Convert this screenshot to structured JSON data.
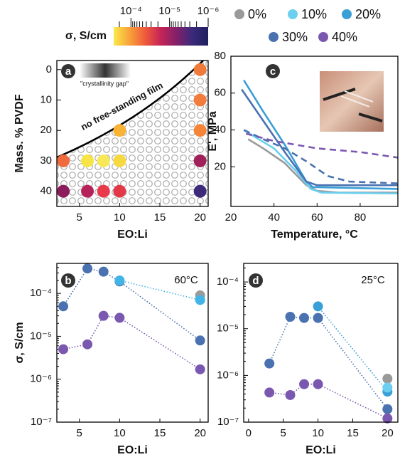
{
  "chart_data": [
    {
      "type": "scatter",
      "panel_label": "a",
      "xlabel": "EO:Li",
      "ylabel": "Mass. % PVDF",
      "xlim": [
        2.2,
        21
      ],
      "xticks": [
        5,
        10,
        15,
        20
      ],
      "ylim": [
        45,
        -3
      ],
      "yticks": [
        0,
        10,
        20,
        30,
        40
      ],
      "annotations": [
        "no free-standing film",
        "\"crystallinity gap\""
      ],
      "colorbar": {
        "label": "σ, S/cm",
        "log": true,
        "lim": [
          0.00028,
          1e-06
        ],
        "ticks": [
          {
            "value": 0.0001,
            "label": "10⁻⁴"
          },
          {
            "value": 1e-05,
            "label": "10⁻⁵"
          },
          {
            "value": 1e-06,
            "label": "10⁻⁶"
          }
        ],
        "colors": [
          "#fbe94a",
          "#f8a23a",
          "#ef5a3c",
          "#c42456",
          "#82206a",
          "#3a2a7a",
          "#1f1f5e"
        ]
      },
      "series": [
        {
          "x": [
            20,
            20,
            20,
            20,
            20,
            10,
            10,
            8,
            6,
            3,
            3,
            6,
            8,
            10
          ],
          "values": [
            0,
            10,
            20,
            30,
            40,
            20,
            30,
            30,
            30,
            30,
            40,
            40,
            40,
            40
          ],
          "colors": [
            "#f07a3a",
            "#f37b3b",
            "#f58438",
            "#a0205a",
            "#3d2a7a",
            "#f9b233",
            "#f6d840",
            "#f8e858",
            "#f7e446",
            "#ef6a3c",
            "#8c1c5c",
            "#b7215a",
            "#e83a4a",
            "#e23848"
          ]
        }
      ]
    },
    {
      "type": "line",
      "markers": true,
      "ylog": true,
      "panel_label": "b",
      "xlabel": "EO:Li",
      "ylabel": "σ, S/cm",
      "annotations": [
        "60°C"
      ],
      "xlim": [
        2.2,
        21
      ],
      "xticks": [
        5,
        10,
        15,
        20
      ],
      "ylim": [
        1e-07,
        0.0005
      ],
      "yticks": [
        {
          "value": 1e-07,
          "label": "10⁻⁷"
        },
        {
          "value": 1e-06,
          "label": "10⁻⁶"
        },
        {
          "value": 1e-05,
          "label": "10⁻⁵"
        },
        {
          "value": 0.0001,
          "label": "10⁻⁴"
        }
      ],
      "series": [
        {
          "color": "#9a9a9a",
          "x": [
            20
          ],
          "values": [
            9e-05
          ]
        },
        {
          "color": "#4a72b0",
          "x": [
            3,
            6,
            8,
            10,
            20
          ],
          "values": [
            5e-05,
            0.00038,
            0.00032,
            0.00019,
            8e-06
          ]
        },
        {
          "color": "#42b4e6",
          "x": [
            10,
            20
          ],
          "values": [
            0.0002,
            7e-05
          ]
        },
        {
          "color": "#7a58b0",
          "x": [
            3,
            6,
            8,
            10,
            20
          ],
          "values": [
            5e-06,
            6.5e-06,
            3e-05,
            2.7e-05,
            1.7e-06
          ]
        }
      ]
    },
    {
      "type": "line",
      "panel_label": "c",
      "xlabel": "Temperature, °C",
      "ylabel": "E', MPa",
      "xlim": [
        20,
        97.5
      ],
      "xticks": [
        20,
        40,
        60,
        80
      ],
      "ylim": [
        -1.5,
        80
      ],
      "yticks": [
        20,
        40,
        60,
        80
      ],
      "legend": [
        {
          "label": "0%",
          "color": "#9a9a9a"
        },
        {
          "label": "10%",
          "color": "#6ccff0"
        },
        {
          "label": "20%",
          "color": "#3a9fd6"
        },
        {
          "label": "30%",
          "color": "#4a72b0"
        },
        {
          "label": "40%",
          "color": "#7a58b0"
        }
      ],
      "series": [
        {
          "color": "#9a9a9a",
          "x": [
            28,
            35,
            45,
            55,
            60,
            70,
            97.5
          ],
          "values": [
            35,
            30,
            22,
            10,
            7,
            6,
            6
          ]
        },
        {
          "color": "#6ccff0",
          "x": [
            26,
            30,
            40,
            50,
            57,
            62,
            97.5
          ],
          "values": [
            40,
            37,
            30,
            18,
            8,
            6,
            5.5
          ]
        },
        {
          "color": "#3a9fd6",
          "x": [
            26,
            35,
            45,
            55,
            58,
            97.5
          ],
          "values": [
            67,
            50,
            32,
            12,
            9,
            8
          ]
        },
        {
          "color": "#4a72b0",
          "x": [
            25,
            35,
            45,
            55,
            60,
            97.5
          ],
          "values": [
            62,
            45,
            28,
            12,
            10,
            10
          ]
        },
        {
          "color": "#4a72b0",
          "dash": true,
          "x": [
            26,
            35,
            45,
            55,
            65,
            75,
            97.5
          ],
          "values": [
            40,
            35,
            30,
            23,
            15,
            12,
            11
          ]
        },
        {
          "color": "#7a58b0",
          "dash": true,
          "x": [
            27,
            40,
            60,
            80,
            97.5
          ],
          "values": [
            38,
            34,
            30,
            28,
            25
          ]
        }
      ]
    },
    {
      "type": "line",
      "markers": true,
      "ylog": true,
      "panel_label": "d",
      "xlabel": "EO:Li",
      "annotations": [
        "25°C"
      ],
      "xlim": [
        -0.7,
        21.5
      ],
      "xticks": [
        0,
        5,
        10,
        15,
        20
      ],
      "ylim": [
        1e-07,
        0.00025
      ],
      "yticks": [
        {
          "value": 1e-07,
          "label": "10⁻⁷"
        },
        {
          "value": 1e-06,
          "label": "10⁻⁶"
        },
        {
          "value": 1e-05,
          "label": "10⁻⁵"
        },
        {
          "value": 0.0001,
          "label": "10⁻⁴"
        }
      ],
      "series": [
        {
          "color": "#9a9a9a",
          "x": [
            20
          ],
          "values": [
            8.5e-07
          ]
        },
        {
          "color": "#4a72b0",
          "x": [
            3,
            6,
            8,
            10,
            20
          ],
          "values": [
            1.8e-06,
            1.8e-05,
            1.7e-05,
            1.7e-05,
            1.9e-07
          ]
        },
        {
          "color": "#3a9fd6",
          "x": [
            10,
            20
          ],
          "values": [
            3e-05,
            4.5e-07
          ]
        },
        {
          "color": "#6ccff0",
          "x": [
            20
          ],
          "values": [
            5.5e-07
          ]
        },
        {
          "color": "#7a58b0",
          "x": [
            3,
            6,
            8,
            10,
            20
          ],
          "values": [
            4.3e-07,
            3.8e-07,
            6.5e-07,
            6.5e-07,
            1.2e-07
          ]
        }
      ]
    }
  ]
}
